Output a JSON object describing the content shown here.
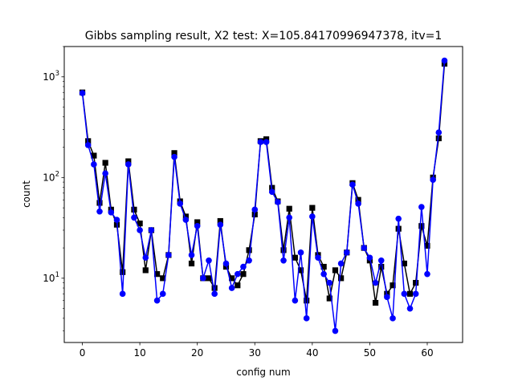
{
  "chart_data": {
    "type": "line",
    "title": "Gibbs sampling result, X2 test: X=105.84170996947378, itv=1",
    "xlabel": "config num",
    "ylabel": "count",
    "x_scale": "linear",
    "y_scale": "log",
    "xlim": [
      -3.15,
      66.15
    ],
    "ylim": [
      2.3,
      2000
    ],
    "x_ticks": [
      0,
      10,
      20,
      30,
      40,
      50,
      60
    ],
    "y_ticks": [
      {
        "value": 10,
        "label": "10^1"
      },
      {
        "value": 100,
        "label": "10^2"
      },
      {
        "value": 1000,
        "label": "10^3"
      }
    ],
    "grid": false,
    "x": [
      0,
      1,
      2,
      3,
      4,
      5,
      6,
      7,
      8,
      9,
      10,
      11,
      12,
      13,
      14,
      15,
      16,
      17,
      18,
      19,
      20,
      21,
      22,
      23,
      24,
      25,
      26,
      27,
      28,
      29,
      30,
      31,
      32,
      33,
      34,
      35,
      36,
      37,
      38,
      39,
      40,
      41,
      42,
      43,
      44,
      45,
      46,
      47,
      48,
      49,
      50,
      51,
      52,
      53,
      54,
      55,
      56,
      57,
      58,
      59,
      60,
      61,
      62,
      63
    ],
    "series": [
      {
        "marker": "square",
        "color": "#000000",
        "values": [
          700,
          230,
          165,
          56,
          140,
          48,
          34,
          11.5,
          145,
          48,
          35,
          12,
          30,
          11,
          10,
          17,
          175,
          58,
          41,
          14,
          36,
          10,
          10,
          8,
          37,
          13,
          10,
          8.5,
          11,
          19,
          43,
          230,
          240,
          79,
          58,
          19,
          49,
          16,
          12,
          6,
          50,
          17,
          13,
          6.3,
          12,
          10,
          18,
          88,
          60,
          20,
          15,
          5.7,
          13,
          7,
          8.5,
          31,
          14,
          7,
          9,
          33,
          21,
          100,
          245,
          1350
        ]
      },
      {
        "marker": "circle",
        "color": "#0000ff",
        "values": [
          690,
          210,
          135,
          46,
          110,
          45,
          38,
          7,
          135,
          40,
          30,
          16,
          30,
          6,
          7,
          17,
          160,
          55,
          38,
          17,
          33,
          10,
          15,
          7,
          34,
          14,
          8,
          11,
          13,
          15,
          48,
          225,
          225,
          72,
          57,
          15,
          40,
          6,
          18,
          4,
          41,
          16,
          11,
          9,
          3,
          14,
          18,
          85,
          55,
          20,
          16,
          9,
          15,
          6.5,
          4,
          39,
          7,
          5,
          7,
          51,
          11,
          95,
          280,
          1450
        ]
      }
    ]
  }
}
